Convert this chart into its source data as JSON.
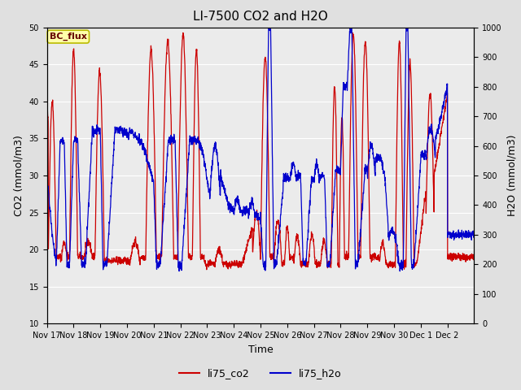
{
  "title": "LI-7500 CO2 and H2O",
  "ylabel_left": "CO2 (mmol/m3)",
  "ylabel_right": "H2O (mmol/m3)",
  "xlabel": "Time",
  "ylim_left": [
    10,
    50
  ],
  "ylim_right": [
    0,
    1000
  ],
  "yticks_left": [
    10,
    15,
    20,
    25,
    30,
    35,
    40,
    45,
    50
  ],
  "yticks_right": [
    0,
    100,
    200,
    300,
    400,
    500,
    600,
    700,
    800,
    900,
    1000
  ],
  "xlim": [
    17,
    33
  ],
  "xtick_labels": [
    "Nov 17",
    "Nov 18",
    "Nov 19",
    "Nov 20",
    "Nov 21",
    "Nov 22",
    "Nov 23",
    "Nov 24",
    "Nov 25",
    "Nov 26",
    "Nov 27",
    "Nov 28",
    "Nov 29",
    "Nov 30",
    "Dec 1",
    "Dec 2"
  ],
  "xtick_positions": [
    17,
    18,
    19,
    20,
    21,
    22,
    23,
    24,
    25,
    26,
    27,
    28,
    29,
    30,
    31,
    32
  ],
  "color_co2": "#cc0000",
  "color_h2o": "#0000cc",
  "linewidth": 0.9,
  "bg_color": "#e0e0e0",
  "plot_bg_color": "#ebebeb",
  "label_co2": "li75_co2",
  "label_h2o": "li75_h2o",
  "site_label": "BC_flux",
  "site_label_bg": "#ffffaa",
  "site_label_border": "#bbbb00",
  "grid_color": "#ffffff",
  "title_fontsize": 11,
  "axis_label_fontsize": 9,
  "tick_fontsize": 7,
  "legend_fontsize": 9
}
